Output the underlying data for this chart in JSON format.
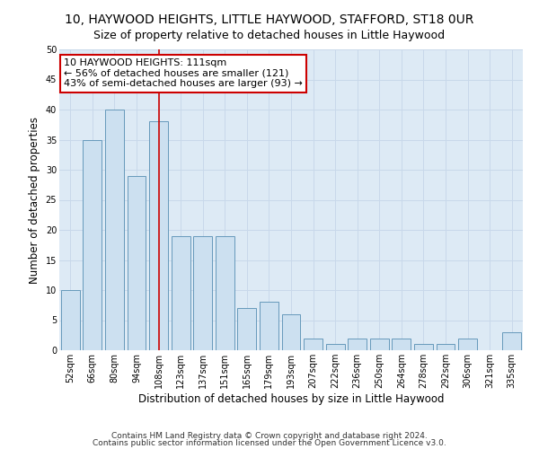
{
  "title": "10, HAYWOOD HEIGHTS, LITTLE HAYWOOD, STAFFORD, ST18 0UR",
  "subtitle": "Size of property relative to detached houses in Little Haywood",
  "xlabel": "Distribution of detached houses by size in Little Haywood",
  "ylabel": "Number of detached properties",
  "categories": [
    "52sqm",
    "66sqm",
    "80sqm",
    "94sqm",
    "108sqm",
    "123sqm",
    "137sqm",
    "151sqm",
    "165sqm",
    "179sqm",
    "193sqm",
    "207sqm",
    "222sqm",
    "236sqm",
    "250sqm",
    "264sqm",
    "278sqm",
    "292sqm",
    "306sqm",
    "321sqm",
    "335sqm"
  ],
  "values": [
    10,
    35,
    40,
    29,
    38,
    19,
    19,
    19,
    7,
    8,
    6,
    2,
    1,
    2,
    2,
    2,
    1,
    1,
    2,
    0,
    3
  ],
  "bar_color": "#cce0f0",
  "bar_edge_color": "#6699bb",
  "vline_x_index": 4,
  "vline_color": "#cc0000",
  "annotation_text": "10 HAYWOOD HEIGHTS: 111sqm\n← 56% of detached houses are smaller (121)\n43% of semi-detached houses are larger (93) →",
  "annotation_box_color": "#ffffff",
  "annotation_box_edge_color": "#cc0000",
  "footnote1": "Contains HM Land Registry data © Crown copyright and database right 2024.",
  "footnote2": "Contains public sector information licensed under the Open Government Licence v3.0.",
  "ylim": [
    0,
    50
  ],
  "yticks": [
    0,
    5,
    10,
    15,
    20,
    25,
    30,
    35,
    40,
    45,
    50
  ],
  "grid_color": "#c8d8ea",
  "bg_color": "#ddeaf5",
  "title_fontsize": 10,
  "subtitle_fontsize": 9,
  "axis_label_fontsize": 8.5,
  "tick_fontsize": 7,
  "annotation_fontsize": 8,
  "footnote_fontsize": 6.5
}
